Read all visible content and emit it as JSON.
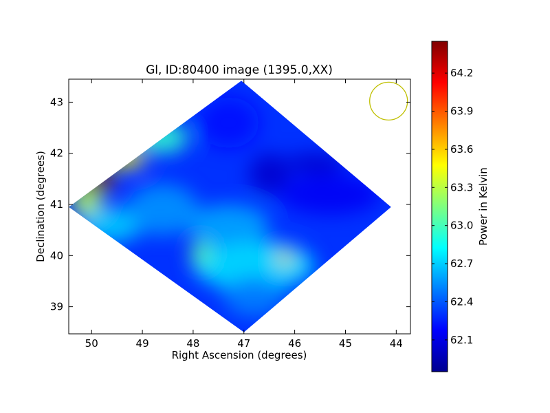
{
  "chart_data": {
    "type": "heatmap",
    "title": "Gl, ID:80400 image (1395.0,XX)",
    "xlabel": "Right Ascension (degrees)",
    "ylabel": "Declination (degrees)",
    "xlim": [
      50.45,
      43.72
    ],
    "ylim": [
      38.47,
      43.45
    ],
    "x_ticks": [
      50,
      49,
      48,
      47,
      46,
      45,
      44
    ],
    "y_ticks": [
      39,
      40,
      41,
      42,
      43
    ],
    "colorbar": {
      "label": "Power in Kelvin",
      "colormap": "jet",
      "range": [
        61.85,
        64.45
      ],
      "ticks": [
        "62.1",
        "62.4",
        "62.7",
        "63.0",
        "63.3",
        "63.6",
        "63.9",
        "64.2"
      ],
      "tick_values": [
        62.1,
        62.4,
        62.7,
        63.0,
        63.3,
        63.6,
        63.9,
        64.2
      ]
    },
    "map_footprint_radec": [
      [
        47.05,
        43.42
      ],
      [
        44.1,
        40.95
      ],
      [
        47.0,
        38.5
      ],
      [
        50.45,
        40.95
      ]
    ],
    "background_value": 62.3,
    "features": [
      {
        "ra": 49.85,
        "dec": 41.45,
        "value": 64.4,
        "spread_ra": 0.35,
        "spread_dec": 0.18
      },
      {
        "ra": 49.3,
        "dec": 41.9,
        "value": 63.5,
        "spread_ra": 0.35,
        "spread_dec": 0.2
      },
      {
        "ra": 50.1,
        "dec": 41.05,
        "value": 63.3,
        "spread_ra": 0.3,
        "spread_dec": 0.3
      },
      {
        "ra": 48.6,
        "dec": 42.3,
        "value": 62.95,
        "spread_ra": 0.5,
        "spread_dec": 0.3
      },
      {
        "ra": 49.6,
        "dec": 40.6,
        "value": 62.7,
        "spread_ra": 0.6,
        "spread_dec": 0.35
      },
      {
        "ra": 46.8,
        "dec": 39.8,
        "value": 62.75,
        "spread_ra": 1.2,
        "spread_dec": 0.5
      },
      {
        "ra": 46.2,
        "dec": 39.95,
        "value": 63.6,
        "spread_ra": 0.12,
        "spread_dec": 0.15
      },
      {
        "ra": 47.85,
        "dec": 40.05,
        "value": 63.05,
        "spread_ra": 0.2,
        "spread_dec": 0.25
      },
      {
        "ra": 47.3,
        "dec": 40.6,
        "value": 62.6,
        "spread_ra": 0.8,
        "spread_dec": 0.4
      },
      {
        "ra": 48.6,
        "dec": 40.9,
        "value": 62.55,
        "spread_ra": 0.7,
        "spread_dec": 0.5
      },
      {
        "ra": 46.8,
        "dec": 39.2,
        "value": 62.5,
        "spread_ra": 0.6,
        "spread_dec": 0.4
      },
      {
        "ra": 46.5,
        "dec": 41.6,
        "value": 62.05,
        "spread_ra": 0.4,
        "spread_dec": 0.4
      },
      {
        "ra": 45.6,
        "dec": 41.8,
        "value": 62.05,
        "spread_ra": 0.6,
        "spread_dec": 0.2
      },
      {
        "ra": 45.3,
        "dec": 41.2,
        "value": 62.15,
        "spread_ra": 1.0,
        "spread_dec": 0.4
      },
      {
        "ra": 47.3,
        "dec": 42.6,
        "value": 62.2,
        "spread_ra": 0.6,
        "spread_dec": 0.5
      }
    ],
    "beam_circle": {
      "ra": 44.15,
      "dec": 43.02,
      "radius_deg": 0.37,
      "color": "#bfbf00"
    },
    "grid": false
  }
}
